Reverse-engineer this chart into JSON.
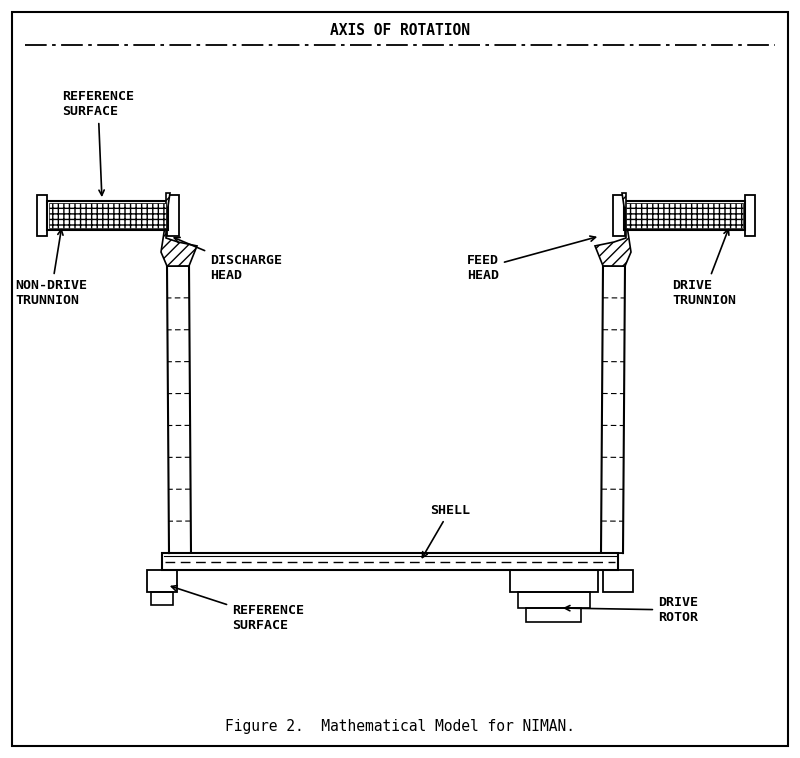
{
  "title": "Figure 2.  Mathematical Model for NIMAN.",
  "axis_label": "——————————————AXIS OF ROTATION—",
  "bg_color": "#ffffff",
  "line_color": "#000000",
  "labels": {
    "ref_surface_top_left": "REFERENCE\nSURFACE",
    "ref_surface_bottom": "REFERENCE\nSURFACE",
    "non_drive_trunnion": "NON-DRIVE\nTRUNNION",
    "discharge_head": "DISCHARGE\nHEAD",
    "feed_head": "FEED\nHEAD",
    "drive_trunnion": "DRIVE\nTRUNNION",
    "shell": "SHELL",
    "drive_rotor": "DRIVE\nROTOR"
  },
  "figsize": [
    8.0,
    7.58
  ],
  "dpi": 100
}
